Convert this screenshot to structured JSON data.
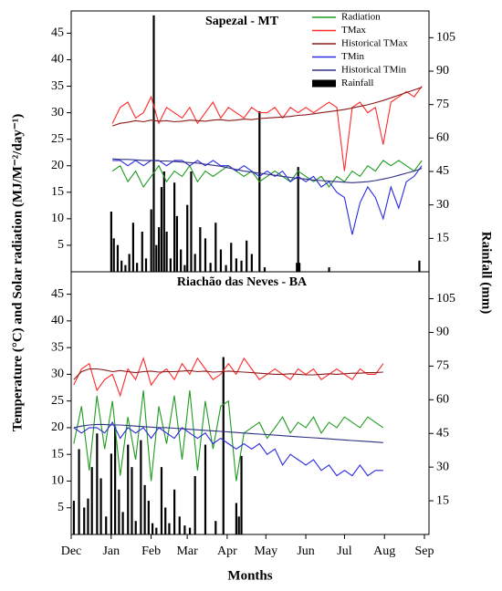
{
  "chart_data": [
    {
      "type": "line",
      "title": "Sapezal - MT",
      "ylabel": "Temperature (°C) and Solar radiation (MJ/M⁻²/day⁻¹)",
      "y2label": "Rainfall (mm)",
      "xlim": [
        0,
        274
      ],
      "ylim": [
        0,
        49.2
      ],
      "yticks": [
        5,
        10,
        15,
        20,
        25,
        30,
        35,
        40,
        45
      ],
      "y2lim": [
        0,
        117
      ],
      "y2ticks": [
        15,
        30,
        45,
        60,
        75,
        90,
        105
      ],
      "legend": "upper right",
      "series": [
        {
          "name": "Radiation",
          "color": "#1f9a1f",
          "x": [
            32,
            38,
            44,
            50,
            56,
            62,
            68,
            74,
            80,
            86,
            92,
            98,
            104,
            110,
            116,
            122,
            128,
            134,
            140,
            146,
            152,
            158,
            164,
            170,
            176,
            182,
            188,
            194,
            200,
            206,
            212,
            218,
            224,
            230,
            236,
            242,
            248,
            254,
            260,
            266,
            272
          ],
          "values": [
            19,
            20,
            17,
            19,
            16,
            18,
            20,
            17,
            19,
            18,
            20,
            17,
            19,
            18,
            19,
            20,
            19,
            18,
            19,
            17,
            18,
            19,
            18,
            17,
            19,
            18,
            17,
            18,
            16,
            18,
            17,
            19,
            18,
            20,
            19,
            21,
            20,
            21,
            20,
            19,
            21
          ]
        },
        {
          "name": "TMax",
          "color": "#ff2a2a",
          "x": [
            32,
            38,
            44,
            50,
            56,
            62,
            68,
            74,
            80,
            86,
            92,
            98,
            104,
            110,
            116,
            122,
            128,
            134,
            140,
            146,
            152,
            158,
            164,
            170,
            176,
            182,
            188,
            194,
            200,
            206,
            212,
            218,
            224,
            230,
            236,
            242,
            248,
            254,
            260,
            266,
            272
          ],
          "values": [
            28,
            31,
            32,
            29,
            30,
            33,
            28,
            31,
            30,
            29,
            31,
            28,
            30,
            32,
            29,
            31,
            30,
            29,
            31,
            30,
            30,
            31,
            29,
            31,
            30,
            31,
            30,
            31,
            32,
            31,
            19,
            31,
            32,
            30,
            31,
            24,
            32,
            33,
            34,
            33,
            35
          ]
        },
        {
          "name": "Historical TMax",
          "color": "#8b1a1a",
          "x": [
            32,
            38,
            44,
            50,
            56,
            62,
            68,
            74,
            80,
            86,
            92,
            98,
            104,
            110,
            116,
            122,
            128,
            134,
            140,
            146,
            152,
            158,
            164,
            170,
            176,
            182,
            188,
            194,
            200,
            206,
            212,
            218,
            224,
            230,
            236,
            242,
            248,
            254,
            260,
            266,
            272
          ],
          "values": [
            27.5,
            28,
            28.2,
            28.5,
            28.3,
            28.6,
            28.4,
            28.5,
            28.3,
            28.4,
            28.6,
            28.5,
            28.4,
            28.6,
            28.7,
            28.5,
            28.6,
            28.8,
            28.7,
            28.9,
            29,
            29.1,
            29.2,
            29.3,
            29.5,
            29.6,
            29.8,
            30,
            30.2,
            30.4,
            30.6,
            30.9,
            31.2,
            31.5,
            31.9,
            32.3,
            32.8,
            33.3,
            33.8,
            34.3,
            34.8
          ]
        },
        {
          "name": "TMin",
          "color": "#2a2ae0",
          "x": [
            32,
            38,
            44,
            50,
            56,
            62,
            68,
            74,
            80,
            86,
            92,
            98,
            104,
            110,
            116,
            122,
            128,
            134,
            140,
            146,
            152,
            158,
            164,
            170,
            176,
            182,
            188,
            194,
            200,
            206,
            212,
            218,
            224,
            230,
            236,
            242,
            248,
            254,
            260,
            266,
            272
          ],
          "values": [
            21,
            21,
            20,
            21,
            20,
            21,
            21,
            20,
            21,
            21,
            20,
            21,
            20,
            21,
            20,
            20,
            19,
            20,
            19,
            18,
            19,
            18,
            19,
            17,
            18,
            17,
            18,
            16,
            17,
            15,
            14,
            7,
            13,
            16,
            14,
            10,
            16,
            12,
            17,
            18,
            20
          ]
        },
        {
          "name": "Historical TMin",
          "color": "#2e2e86",
          "x": [
            32,
            38,
            44,
            50,
            56,
            62,
            68,
            74,
            80,
            86,
            92,
            98,
            104,
            110,
            116,
            122,
            128,
            134,
            140,
            146,
            152,
            158,
            164,
            170,
            176,
            182,
            188,
            194,
            200,
            206,
            212,
            218,
            224,
            230,
            236,
            242,
            248,
            254,
            260,
            266,
            272
          ],
          "values": [
            21.3,
            21.2,
            21.2,
            21.1,
            21,
            21,
            20.9,
            20.9,
            20.8,
            20.7,
            20.6,
            20.5,
            20.3,
            20.1,
            19.9,
            19.6,
            19.3,
            19,
            18.8,
            18.6,
            18.4,
            18.2,
            18,
            17.8,
            17.6,
            17.5,
            17.3,
            17.2,
            17.1,
            17,
            16.9,
            16.8,
            16.9,
            17,
            17.2,
            17.5,
            17.8,
            18.2,
            18.6,
            19,
            19.5
          ]
        },
        {
          "name": "Rainfall",
          "type": "bar",
          "axis": "y2",
          "color": "#000000",
          "x": [
            31,
            33,
            36,
            39,
            42,
            45,
            48,
            51,
            55,
            58,
            62,
            64,
            66,
            68,
            70,
            72,
            74,
            77,
            80,
            82,
            85,
            88,
            90,
            93,
            96,
            100,
            104,
            108,
            112,
            116,
            120,
            124,
            128,
            132,
            136,
            140,
            146,
            150,
            175,
            176,
            177,
            200,
            270
          ],
          "values": [
            27,
            15,
            12,
            5,
            3,
            8,
            22,
            4,
            18,
            6,
            28,
            115,
            12,
            20,
            38,
            45,
            18,
            6,
            40,
            25,
            10,
            3,
            30,
            45,
            8,
            20,
            15,
            4,
            22,
            10,
            3,
            13,
            6,
            5,
            14,
            8,
            72,
            2,
            4,
            47,
            4,
            2,
            5
          ]
        }
      ]
    },
    {
      "type": "line",
      "title": "Riachão das Neves - BA",
      "xlabel": "Months",
      "xlim": [
        0,
        274
      ],
      "xticks": [
        {
          "value": 0,
          "label": "Dec"
        },
        {
          "value": 31,
          "label": "Jan"
        },
        {
          "value": 62,
          "label": "Feb"
        },
        {
          "value": 90,
          "label": "Mar"
        },
        {
          "value": 121,
          "label": "Apr"
        },
        {
          "value": 151,
          "label": "May"
        },
        {
          "value": 182,
          "label": "Jun"
        },
        {
          "value": 212,
          "label": "Jul"
        },
        {
          "value": 243,
          "label": "Aug"
        },
        {
          "value": 274,
          "label": "Sep"
        }
      ],
      "ylim": [
        0,
        49.2
      ],
      "yticks": [
        5,
        10,
        15,
        20,
        25,
        30,
        35,
        40,
        45
      ],
      "y2lim": [
        0,
        117
      ],
      "y2ticks": [
        15,
        30,
        45,
        60,
        75,
        90,
        105
      ],
      "series": [
        {
          "color": "#1f9a1f",
          "x": [
            2,
            8,
            14,
            20,
            26,
            32,
            38,
            44,
            50,
            56,
            62,
            68,
            74,
            80,
            86,
            92,
            98,
            104,
            110,
            116,
            122,
            128,
            134,
            140,
            146,
            152,
            158,
            164,
            170,
            176,
            182,
            188,
            194,
            200,
            206,
            212,
            218,
            224,
            230,
            236,
            242
          ],
          "values": [
            17,
            24,
            12,
            26,
            16,
            25,
            11,
            22,
            14,
            27,
            10,
            24,
            17,
            26,
            14,
            27,
            12,
            25,
            16,
            24,
            25,
            10,
            19,
            20,
            21,
            18,
            20,
            22,
            19,
            21,
            20,
            22,
            19,
            21,
            20,
            22,
            21,
            20,
            22,
            21,
            20
          ]
        },
        {
          "color": "#ff2a2a",
          "x": [
            2,
            8,
            14,
            20,
            26,
            32,
            38,
            44,
            50,
            56,
            62,
            68,
            74,
            80,
            86,
            92,
            98,
            104,
            110,
            116,
            122,
            128,
            134,
            140,
            146,
            152,
            158,
            164,
            170,
            176,
            182,
            188,
            194,
            200,
            206,
            212,
            218,
            224,
            230,
            236,
            242
          ],
          "values": [
            28,
            31,
            32,
            27,
            29,
            30,
            26,
            31,
            29,
            33,
            28,
            30,
            31,
            29,
            32,
            30,
            33,
            31,
            29,
            30,
            32,
            30,
            33,
            31,
            29,
            30,
            31,
            30,
            29,
            31,
            30,
            31,
            29,
            30,
            31,
            30,
            29,
            31,
            30,
            30,
            32
          ]
        },
        {
          "color": "#8b1a1a",
          "x": [
            2,
            8,
            14,
            20,
            26,
            32,
            38,
            44,
            50,
            56,
            62,
            68,
            74,
            80,
            86,
            92,
            98,
            104,
            110,
            116,
            122,
            128,
            134,
            140,
            146,
            152,
            158,
            164,
            170,
            176,
            182,
            188,
            194,
            200,
            206,
            212,
            218,
            224,
            230,
            236,
            242
          ],
          "values": [
            29,
            30.5,
            31,
            31,
            30.8,
            30.5,
            30.7,
            30.5,
            30.3,
            30.5,
            30.6,
            30.4,
            30.5,
            30.5,
            30.6,
            30.7,
            30.5,
            30.6,
            30.4,
            30.5,
            30.6,
            30.5,
            30.4,
            30.3,
            30.2,
            30.1,
            30,
            30,
            30.1,
            30,
            29.9,
            29.9,
            30,
            30.1,
            30,
            30.1,
            30.2,
            30.2,
            30.3,
            30.3,
            30.4
          ]
        },
        {
          "color": "#2a2ae0",
          "x": [
            2,
            8,
            14,
            20,
            26,
            32,
            38,
            44,
            50,
            56,
            62,
            68,
            74,
            80,
            86,
            92,
            98,
            104,
            110,
            116,
            122,
            128,
            134,
            140,
            146,
            152,
            158,
            164,
            170,
            176,
            182,
            188,
            194,
            200,
            206,
            212,
            218,
            224,
            230,
            236,
            242
          ],
          "values": [
            20,
            19,
            20,
            20,
            19,
            21,
            18,
            20,
            19,
            20,
            18,
            20,
            19,
            18,
            20,
            19,
            18,
            19,
            17,
            18,
            17,
            16,
            17,
            16,
            17,
            15,
            16,
            13,
            15,
            14,
            13,
            14,
            12,
            13,
            11,
            12,
            11,
            13,
            11,
            12,
            12
          ]
        },
        {
          "color": "#2e2e86",
          "x": [
            2,
            8,
            14,
            20,
            26,
            32,
            38,
            44,
            50,
            56,
            62,
            68,
            74,
            80,
            86,
            92,
            98,
            104,
            110,
            116,
            122,
            128,
            134,
            140,
            146,
            152,
            158,
            164,
            170,
            176,
            182,
            188,
            194,
            200,
            206,
            212,
            218,
            224,
            230,
            236,
            242
          ],
          "values": [
            20,
            20.3,
            20.5,
            20.6,
            20.6,
            20.5,
            20.5,
            20.4,
            20.3,
            20.2,
            20.1,
            20,
            20,
            19.9,
            19.8,
            19.7,
            19.6,
            19.5,
            19.4,
            19.3,
            19.2,
            19.1,
            19,
            18.9,
            18.8,
            18.7,
            18.6,
            18.5,
            18.4,
            18.3,
            18.2,
            18.1,
            18,
            17.9,
            17.8,
            17.7,
            17.6,
            17.5,
            17.4,
            17.3,
            17.2
          ]
        },
        {
          "type": "bar",
          "axis": "y2",
          "color": "#000000",
          "x": [
            2,
            6,
            10,
            13,
            16,
            20,
            23,
            27,
            31,
            34,
            37,
            40,
            44,
            47,
            50,
            54,
            57,
            60,
            63,
            66,
            70,
            73,
            76,
            80,
            84,
            88,
            92,
            96,
            104,
            112,
            118,
            128,
            130,
            132
          ],
          "values": [
            15,
            38,
            12,
            16,
            30,
            45,
            25,
            8,
            36,
            48,
            20,
            10,
            40,
            30,
            6,
            42,
            22,
            15,
            5,
            3,
            30,
            12,
            5,
            20,
            8,
            4,
            3,
            26,
            40,
            6,
            79,
            14,
            8,
            35
          ]
        }
      ]
    }
  ]
}
